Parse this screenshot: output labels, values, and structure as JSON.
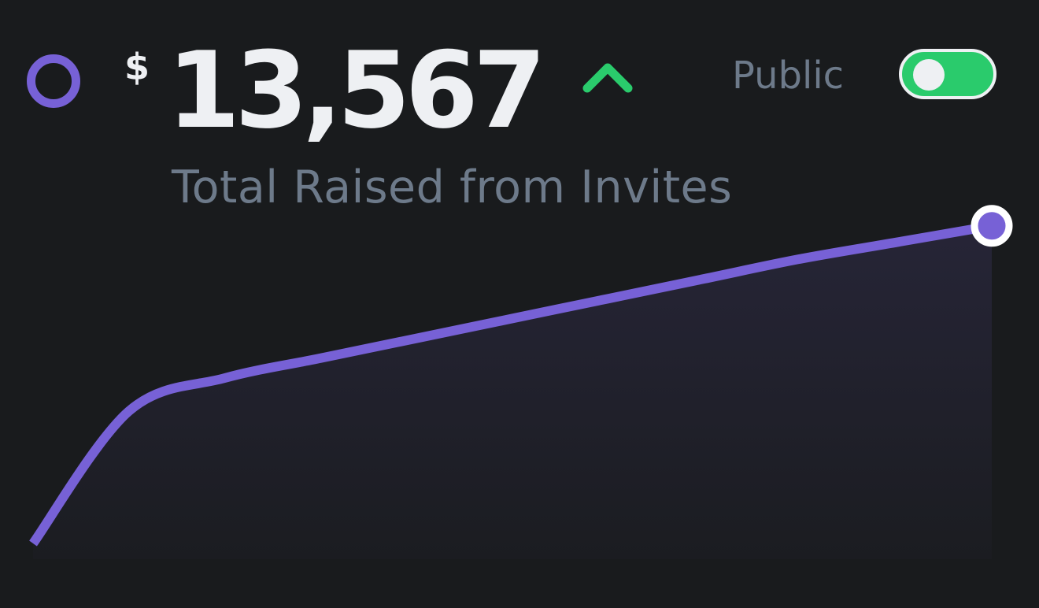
{
  "header": {
    "currency_symbol": "$",
    "amount": "13,567",
    "subtitle": "Total Raised from Invites",
    "trend_icon": "caret-up-icon",
    "status_icon": "ring-icon"
  },
  "visibility": {
    "label": "Public",
    "toggle_on": true
  },
  "colors": {
    "background": "#191b1d",
    "accent": "#7761d6",
    "positive": "#2acb6c",
    "text_primary": "#eef0f3",
    "text_secondary": "#6d7a8a"
  },
  "chart_data": {
    "type": "area",
    "x": [
      0,
      1,
      2,
      3,
      4,
      5,
      6,
      7,
      8,
      9,
      10
    ],
    "values": [
      0,
      0.4,
      0.5,
      0.56,
      0.62,
      0.68,
      0.74,
      0.8,
      0.86,
      0.91,
      0.96
    ],
    "title": "",
    "xlabel": "",
    "ylabel": "",
    "ylim": [
      0,
      1
    ],
    "grid": false,
    "legend": "none",
    "end_marker": true
  }
}
